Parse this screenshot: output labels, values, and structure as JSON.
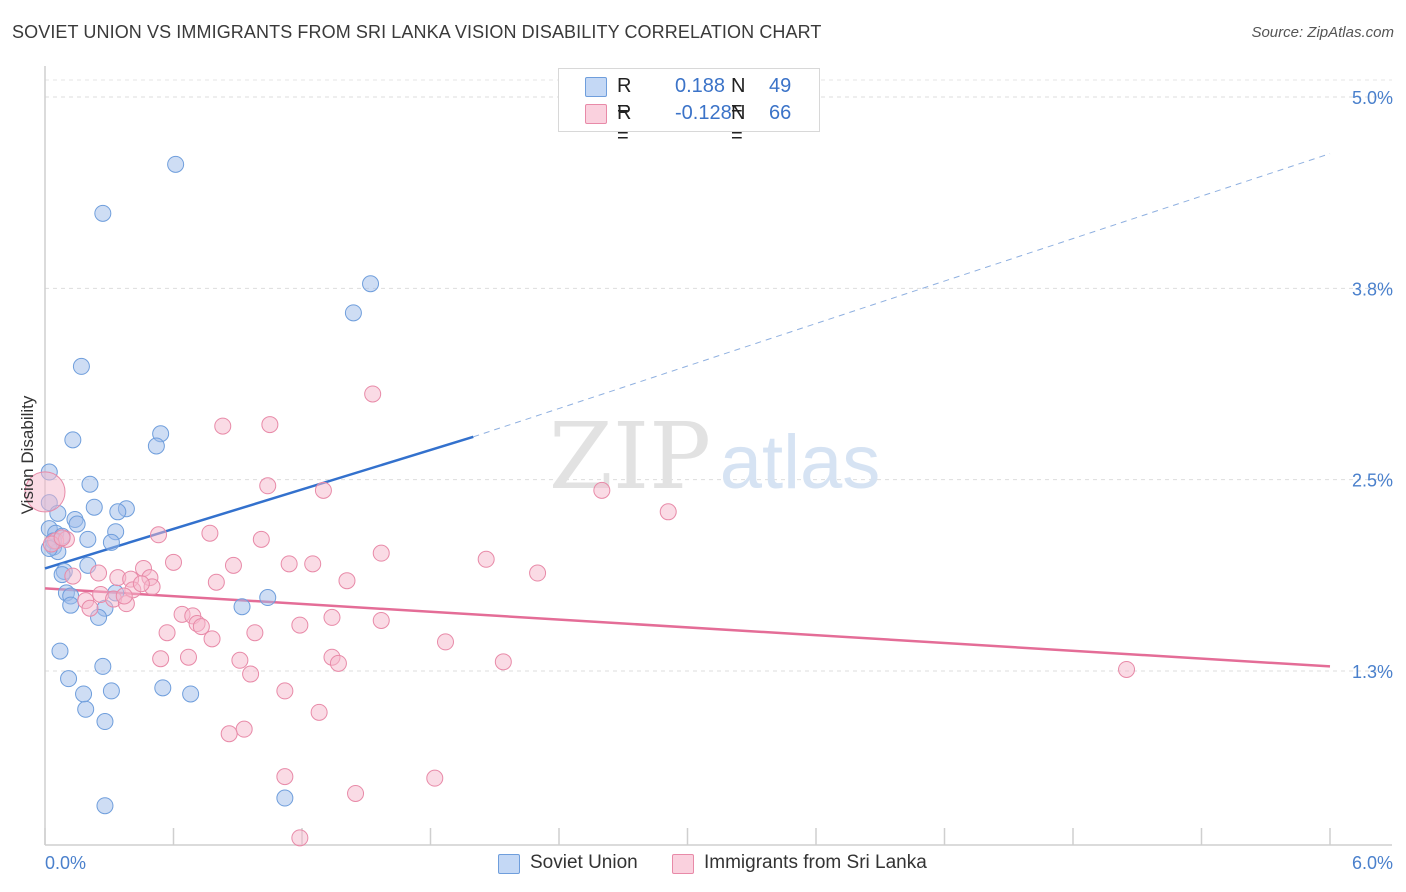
{
  "title": "SOVIET UNION VS IMMIGRANTS FROM SRI LANKA VISION DISABILITY CORRELATION CHART",
  "source": "Source: ZipAtlas.com",
  "watermark": {
    "zip": "ZIP",
    "atlas": "atlas"
  },
  "legend": {
    "r_label": "R =",
    "n_label": "N =",
    "series": [
      {
        "name": "Soviet Union",
        "r": "0.188",
        "n": "49",
        "color": "#9dbcea",
        "stroke": "#6f9edc"
      },
      {
        "name": "Immigrants from Sri Lanka",
        "r": "-0.128",
        "n": "66",
        "color": "#f5b7cb",
        "stroke": "#e88aa8"
      }
    ]
  },
  "chart_data": {
    "type": "scatter",
    "title": "SOVIET UNION VS IMMIGRANTS FROM SRI LANKA VISION DISABILITY CORRELATION CHART",
    "xlabel": "",
    "ylabel": "Vision Disability",
    "xlim": [
      0,
      6
    ],
    "ylim": [
      0.0,
      5.2
    ],
    "x_tick_labels": [
      "0.0%",
      "6.0%"
    ],
    "y_ticks": [
      1.25,
      2.5,
      3.75,
      5.0
    ],
    "y_tick_labels": [
      "1.3%",
      "2.5%",
      "3.8%",
      "5.0%"
    ],
    "grid": true,
    "series": [
      {
        "name": "Soviet Union",
        "color": "#9dbcea",
        "stroke": "#6f9edc",
        "points": [
          [
            0.61,
            4.56
          ],
          [
            0.27,
            4.24
          ],
          [
            1.52,
            3.78
          ],
          [
            1.44,
            3.59
          ],
          [
            0.17,
            3.24
          ],
          [
            0.54,
            2.8
          ],
          [
            0.13,
            2.76
          ],
          [
            0.52,
            2.72
          ],
          [
            0.02,
            2.55
          ],
          [
            0.21,
            2.47
          ],
          [
            0.02,
            2.35
          ],
          [
            0.23,
            2.32
          ],
          [
            0.38,
            2.31
          ],
          [
            0.34,
            2.29
          ],
          [
            0.14,
            2.24
          ],
          [
            0.15,
            2.21
          ],
          [
            0.02,
            2.18
          ],
          [
            0.33,
            2.16
          ],
          [
            0.05,
            2.15
          ],
          [
            0.08,
            2.13
          ],
          [
            0.2,
            2.11
          ],
          [
            0.31,
            2.09
          ],
          [
            0.04,
            2.06
          ],
          [
            0.06,
            2.03
          ],
          [
            0.2,
            1.94
          ],
          [
            0.09,
            1.9
          ],
          [
            0.08,
            1.88
          ],
          [
            0.33,
            1.76
          ],
          [
            0.1,
            1.76
          ],
          [
            0.12,
            1.74
          ],
          [
            0.12,
            1.68
          ],
          [
            0.28,
            1.66
          ],
          [
            0.92,
            1.67
          ],
          [
            1.04,
            1.73
          ],
          [
            0.25,
            1.6
          ],
          [
            0.07,
            1.38
          ],
          [
            0.27,
            1.28
          ],
          [
            0.11,
            1.2
          ],
          [
            0.55,
            1.14
          ],
          [
            0.31,
            1.12
          ],
          [
            0.68,
            1.1
          ],
          [
            0.18,
            1.1
          ],
          [
            0.19,
            1.0
          ],
          [
            0.28,
            0.92
          ],
          [
            0.28,
            0.37
          ],
          [
            1.12,
            0.42
          ],
          [
            0.04,
            2.1
          ],
          [
            0.02,
            2.05
          ],
          [
            0.06,
            2.28
          ]
        ]
      },
      {
        "name": "Immigrants from Sri Lanka",
        "color": "#f5b7cb",
        "stroke": "#e88aa8",
        "points": [
          [
            0.0,
            2.42
          ],
          [
            1.53,
            3.06
          ],
          [
            0.83,
            2.85
          ],
          [
            1.05,
            2.86
          ],
          [
            1.04,
            2.46
          ],
          [
            1.3,
            2.43
          ],
          [
            2.6,
            2.43
          ],
          [
            2.91,
            2.29
          ],
          [
            0.53,
            2.14
          ],
          [
            0.77,
            2.15
          ],
          [
            1.01,
            2.11
          ],
          [
            0.05,
            2.1
          ],
          [
            0.1,
            2.11
          ],
          [
            1.57,
            2.02
          ],
          [
            2.06,
            1.98
          ],
          [
            0.6,
            1.96
          ],
          [
            0.88,
            1.94
          ],
          [
            1.14,
            1.95
          ],
          [
            1.25,
            1.95
          ],
          [
            0.46,
            1.92
          ],
          [
            0.25,
            1.89
          ],
          [
            2.3,
            1.89
          ],
          [
            0.13,
            1.87
          ],
          [
            0.34,
            1.86
          ],
          [
            0.49,
            1.86
          ],
          [
            0.4,
            1.85
          ],
          [
            0.5,
            1.8
          ],
          [
            0.8,
            1.83
          ],
          [
            1.41,
            1.84
          ],
          [
            0.41,
            1.78
          ],
          [
            0.45,
            1.82
          ],
          [
            0.26,
            1.75
          ],
          [
            0.32,
            1.72
          ],
          [
            0.19,
            1.71
          ],
          [
            0.38,
            1.69
          ],
          [
            0.37,
            1.74
          ],
          [
            0.21,
            1.66
          ],
          [
            0.64,
            1.62
          ],
          [
            0.69,
            1.61
          ],
          [
            1.34,
            1.6
          ],
          [
            1.57,
            1.58
          ],
          [
            0.71,
            1.56
          ],
          [
            0.73,
            1.54
          ],
          [
            1.19,
            1.55
          ],
          [
            0.57,
            1.5
          ],
          [
            0.98,
            1.5
          ],
          [
            0.78,
            1.46
          ],
          [
            1.87,
            1.44
          ],
          [
            1.34,
            1.34
          ],
          [
            0.54,
            1.33
          ],
          [
            0.67,
            1.34
          ],
          [
            0.91,
            1.32
          ],
          [
            1.37,
            1.3
          ],
          [
            2.14,
            1.31
          ],
          [
            0.96,
            1.23
          ],
          [
            1.12,
            1.12
          ],
          [
            1.28,
            0.98
          ],
          [
            0.93,
            0.87
          ],
          [
            0.86,
            0.84
          ],
          [
            1.12,
            0.56
          ],
          [
            1.82,
            0.55
          ],
          [
            1.45,
            0.45
          ],
          [
            1.19,
            0.16
          ],
          [
            5.05,
            1.26
          ],
          [
            0.03,
            2.08
          ],
          [
            0.08,
            2.12
          ]
        ]
      }
    ],
    "trendlines": [
      {
        "series": "Soviet Union",
        "color": "#3371cd",
        "x_solid": [
          0.0,
          2.0
        ],
        "y_solid": [
          1.92,
          2.78
        ],
        "x_dashed": [
          2.0,
          6.0
        ],
        "y_dashed": [
          2.78,
          4.63
        ]
      },
      {
        "series": "Immigrants from Sri Lanka",
        "color": "#e46d97",
        "x_solid": [
          0.0,
          6.0
        ],
        "y_solid": [
          1.79,
          1.28
        ]
      }
    ]
  }
}
